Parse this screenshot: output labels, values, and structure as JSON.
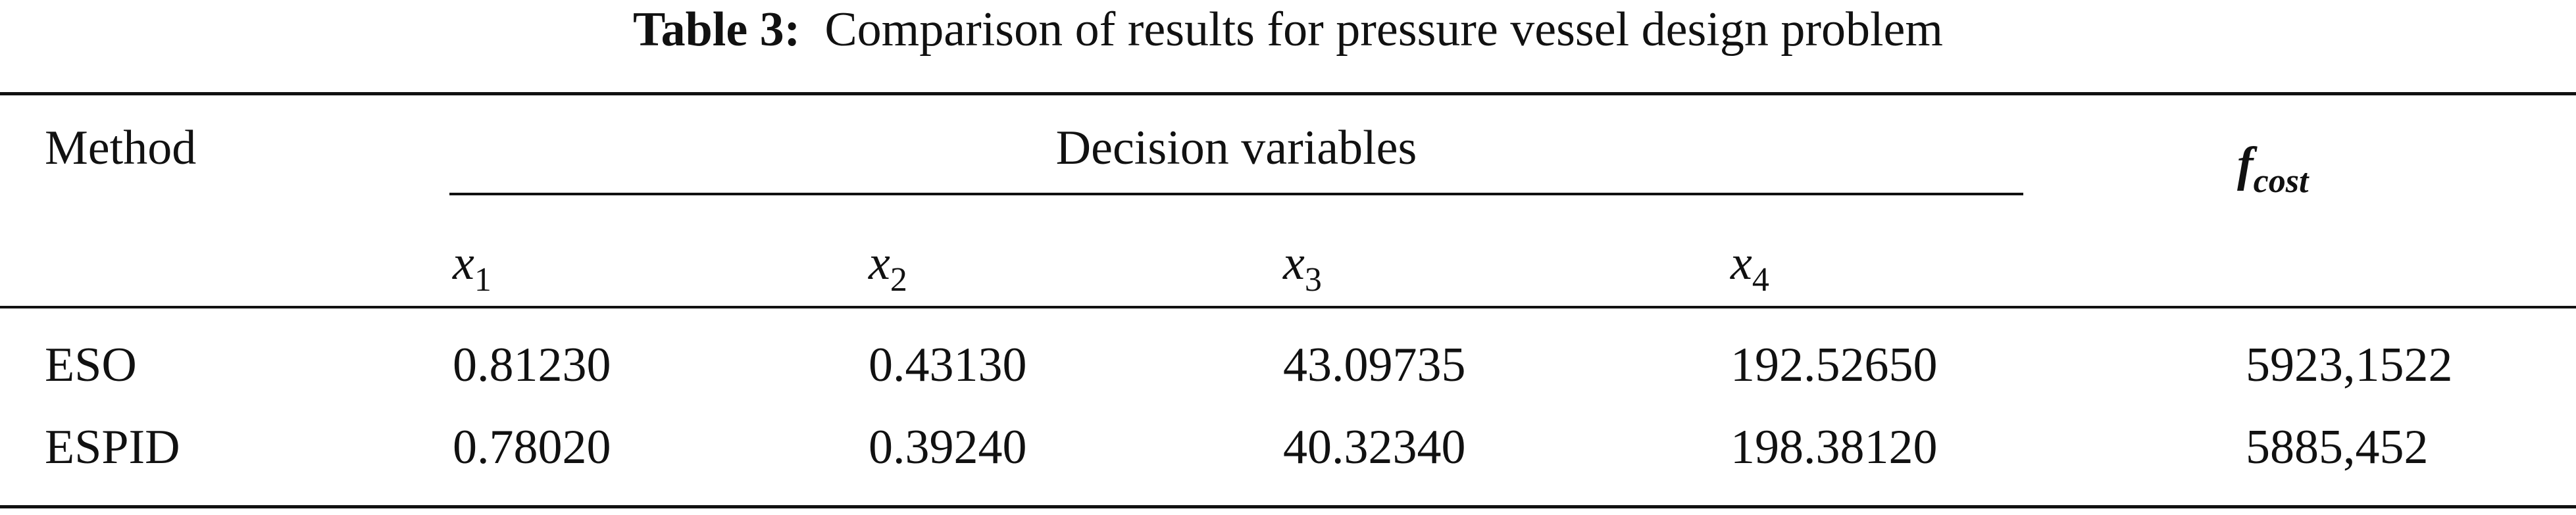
{
  "table": {
    "title": {
      "label": "Table 3:",
      "text": "Comparison of results for pressure vessel design problem"
    },
    "header": {
      "method": "Method",
      "group": "Decision variables",
      "cost": {
        "base": "f",
        "sub": "cost"
      },
      "vars": [
        {
          "base": "x",
          "sub": "1"
        },
        {
          "base": "x",
          "sub": "2"
        },
        {
          "base": "x",
          "sub": "3"
        },
        {
          "base": "x",
          "sub": "4"
        }
      ]
    },
    "rows": [
      [
        "ESO",
        "0.81230",
        "0.43130",
        "43.09735",
        "192.52650",
        "5923,1522"
      ],
      [
        "ESPID",
        "0.78020",
        "0.39240",
        "40.32340",
        "198.38120",
        "5885,452"
      ]
    ]
  }
}
